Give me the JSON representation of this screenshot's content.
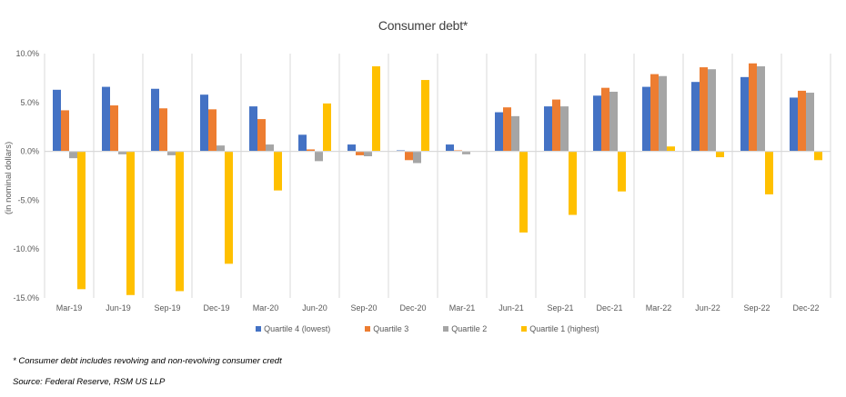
{
  "chart_data": {
    "type": "bar",
    "title": "Consumer debt*",
    "xlabel": "",
    "ylabel": "(in nominal dollars)",
    "ylim": [
      -15,
      10
    ],
    "yticks": [
      10,
      5,
      0,
      -5,
      -10,
      -15
    ],
    "ytick_labels": [
      "10.0%",
      "5.0%",
      "0.0%",
      "-5.0%",
      "-10.0%",
      "-15.0%"
    ],
    "grid": "vertical category separators",
    "legend_position": "bottom",
    "categories": [
      "Mar-19",
      "Jun-19",
      "Sep-19",
      "Dec-19",
      "Mar-20",
      "Jun-20",
      "Sep-20",
      "Dec-20",
      "Mar-21",
      "Jun-21",
      "Sep-21",
      "Dec-21",
      "Mar-22",
      "Jun-22",
      "Sep-22",
      "Dec-22"
    ],
    "series": [
      {
        "name": "Quartile 4 (lowest)",
        "color": "#4472C4",
        "values": [
          6.3,
          6.6,
          6.4,
          5.8,
          4.6,
          1.7,
          0.7,
          0.1,
          0.7,
          4.0,
          4.6,
          5.7,
          6.6,
          7.1,
          7.6,
          5.5
        ]
      },
      {
        "name": "Quartile 3",
        "color": "#ED7D31",
        "values": [
          4.2,
          4.7,
          4.4,
          4.3,
          3.3,
          0.2,
          -0.4,
          -0.9,
          0.1,
          4.5,
          5.3,
          6.5,
          7.9,
          8.6,
          9.0,
          6.2
        ]
      },
      {
        "name": "Quartile 2",
        "color": "#A5A5A5",
        "values": [
          -0.7,
          -0.3,
          -0.4,
          0.6,
          0.7,
          -1.0,
          -0.5,
          -1.2,
          -0.3,
          3.6,
          4.6,
          6.1,
          7.7,
          8.4,
          8.7,
          6.0
        ]
      },
      {
        "name": "Quartile 1 (highest)",
        "color": "#FFC000",
        "values": [
          -14.1,
          -14.7,
          -14.3,
          -11.5,
          -4.0,
          4.9,
          8.7,
          7.3,
          0.0,
          -8.3,
          -6.5,
          -4.1,
          0.5,
          -0.6,
          -4.4,
          -0.9
        ]
      }
    ]
  },
  "footnote": "* Consumer debt includes revolving and non-revolving consumer credt",
  "source": "Source: Federal Reserve, RSM US LLP"
}
